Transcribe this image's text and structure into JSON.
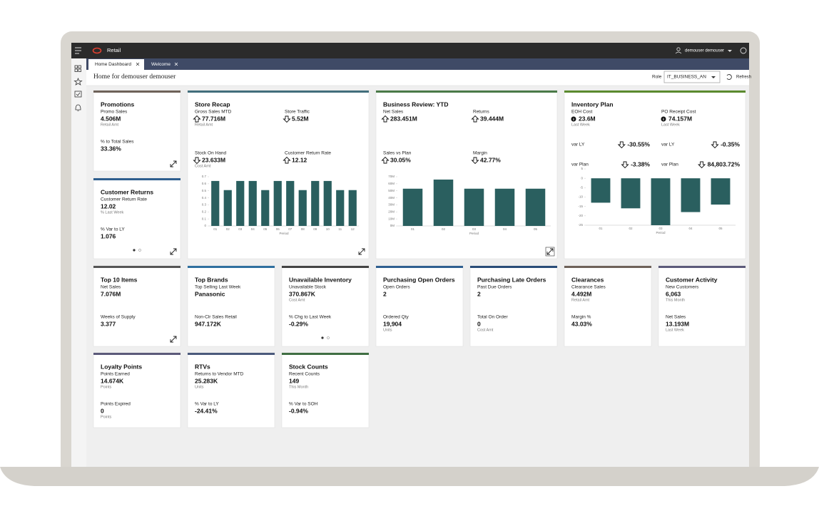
{
  "app": {
    "name": "Retail",
    "user": "demouser demouser",
    "tabs": [
      "Home Dashboard",
      "Welcome"
    ],
    "page_title": "Home for demouser demouser",
    "role_label": "Role",
    "role_value": "IT_BUSINESS_AN",
    "refresh": "Refresh"
  },
  "cards": [
    {
      "title": "Promotions",
      "accent": "#6e6259",
      "metrics": [
        {
          "label": "Promo Sales",
          "value": "4.506M",
          "sub": "Retail Amt"
        },
        {
          "label": "% to Total Sales",
          "value": "33.36%"
        }
      ]
    },
    {
      "title": "Customer Returns",
      "accent": "#2e5e8e",
      "metrics": [
        {
          "label": "Customer Return Rate",
          "value": "12.02",
          "sub": "% Last Week"
        },
        {
          "label": "% Var to LY",
          "value": "1.076"
        }
      ]
    },
    {
      "title": "Store Recap",
      "accent": "#426e7c",
      "metrics": [
        {
          "label": "Gross Sales MTD",
          "value": "77.716M",
          "sub": "Retail Amt",
          "trend": "up"
        },
        {
          "label": "Store Traffic",
          "value": "5.52M",
          "trend": "down"
        },
        {
          "label": "Stock On Hand",
          "value": "23.633M",
          "sub": "Cost Amt",
          "trend": "down"
        },
        {
          "label": "Customer Return Rate",
          "value": "12.12",
          "trend": "up"
        }
      ],
      "chart": {
        "type": "bar",
        "color": "#2a5f5f",
        "x_label": "Period",
        "categories": [
          "01",
          "02",
          "03",
          "04",
          "05",
          "06",
          "07",
          "08",
          "09",
          "10",
          "11",
          "12"
        ],
        "values": [
          0.64,
          0.51,
          0.64,
          0.64,
          0.51,
          0.64,
          0.64,
          0.51,
          0.64,
          0.64,
          0.51,
          0.51
        ],
        "ylim": [
          0,
          0.7
        ],
        "yticks": [
          0,
          0.1,
          0.2,
          0.3,
          0.4,
          0.5,
          0.6,
          0.7
        ]
      }
    },
    {
      "title": "Business Review: YTD",
      "accent": "#4a7a48",
      "metrics": [
        {
          "label": "Net Sales",
          "value": "283.451M",
          "trend": "up"
        },
        {
          "label": "Returns",
          "value": "39.444M",
          "trend": "up"
        },
        {
          "label": "Sales vs Plan",
          "value": "30.05%",
          "trend": "up"
        },
        {
          "label": "Margin",
          "value": "42.77%",
          "trend": "down"
        }
      ],
      "chart": {
        "type": "bar",
        "color": "#2a5f5f",
        "x_label": "Period",
        "categories": [
          "01",
          "02",
          "03",
          "04",
          "05"
        ],
        "values": [
          53,
          66,
          53,
          53,
          53
        ],
        "ylim": [
          0,
          70
        ],
        "yticks": [
          {
            "value": 0,
            "label": "0M"
          },
          {
            "value": 10,
            "label": "10M"
          },
          {
            "value": 20,
            "label": "20M"
          },
          {
            "value": 30,
            "label": "30M"
          },
          {
            "value": 40,
            "label": "40M"
          },
          {
            "value": 50,
            "label": "50M"
          },
          {
            "value": 60,
            "label": "60M"
          },
          {
            "value": 70,
            "label": "70M"
          }
        ]
      }
    },
    {
      "title": "Inventory Plan",
      "accent": "#5b8a2e",
      "metrics": [
        {
          "label": "EOH Cost",
          "value": "23.6M",
          "sub": "Last Week",
          "trend": "info"
        },
        {
          "label": "PO Receipt Cost",
          "value": "74.157M",
          "sub": "Last Week",
          "trend": "info"
        },
        {
          "label": "var LY",
          "value": "-30.55%",
          "trend": "down"
        },
        {
          "label": "var LY",
          "value": "-0.35%",
          "trend": "down"
        },
        {
          "label": "var Plan",
          "value": "-3.38%",
          "trend": "down"
        },
        {
          "label": "var Plan",
          "value": "84,803.72%",
          "trend": "down"
        }
      ],
      "chart": {
        "type": "bar",
        "color": "#2a5f5f",
        "x_label": "Period",
        "categories": [
          "01",
          "02",
          "03",
          "04",
          "05"
        ],
        "values": [
          -13,
          -16,
          -25,
          -18,
          -14
        ],
        "ylim": [
          -25,
          5
        ],
        "yticks": [
          -25,
          -20,
          -15,
          -10,
          -5,
          0,
          5
        ]
      }
    },
    {
      "title": "Top 10 Items",
      "accent": "#555555",
      "metrics": [
        {
          "label": "Net Sales",
          "value": "7.076M"
        },
        {
          "label": "Weeks of Supply",
          "value": "3.377"
        }
      ]
    },
    {
      "title": "Top Brands",
      "accent": "#2f6f9f",
      "metrics": [
        {
          "label": "Top Selling Last Week",
          "value": "Panasonic"
        },
        {
          "label": "Non-Clr Sales Retail",
          "value": "947.172K"
        }
      ]
    },
    {
      "title": "Unavailable Inventory",
      "accent": "#444444",
      "metrics": [
        {
          "label": "Unavailable Stock",
          "value": "370.867K",
          "sub": "Cost Amt"
        },
        {
          "label": "% Chg to Last Week",
          "value": "-0.29%"
        }
      ]
    },
    {
      "title": "Purchasing Open Orders",
      "accent": "#2f5f90",
      "metrics": [
        {
          "label": "Open Orders",
          "value": "2"
        },
        {
          "label": "Ordered Qty",
          "value": "19,904",
          "sub": "Units"
        }
      ]
    },
    {
      "title": "Purchasing Late Orders",
      "accent": "#2a4c78",
      "metrics": [
        {
          "label": "Past Due Orders",
          "value": "2"
        },
        {
          "label": "Total On Order",
          "value": "0",
          "sub": "Cost Amt"
        }
      ]
    },
    {
      "title": "Clearances",
      "accent": "#6e6259",
      "metrics": [
        {
          "label": "Clearance Sales",
          "value": "4.492M",
          "sub": "Retail Amt"
        },
        {
          "label": "Margin %",
          "value": "43.03%"
        }
      ]
    },
    {
      "title": "Customer Activity",
      "accent": "#5c5a7a",
      "metrics": [
        {
          "label": "New Customers",
          "value": "6,063",
          "sub": "This Month"
        },
        {
          "label": "Net Sales",
          "value": "13.193M",
          "sub": "Last Week"
        }
      ]
    },
    {
      "title": "Loyalty Points",
      "accent": "#5c5a7a",
      "metrics": [
        {
          "label": "Points Earned",
          "value": "14.674K",
          "sub": "Points"
        },
        {
          "label": "Points Expired",
          "value": "0",
          "sub": "Points"
        }
      ]
    },
    {
      "title": "RTVs",
      "accent": "#4b5a7c",
      "metrics": [
        {
          "label": "Returns to Vendor MTD",
          "value": "25.283K",
          "sub": "Units"
        },
        {
          "label": "% Var to LY",
          "value": "-24.41%"
        }
      ]
    },
    {
      "title": "Stock Counts",
      "accent": "#3f6e42",
      "metrics": [
        {
          "label": "Recent Counts",
          "value": "149",
          "sub": "This Month"
        },
        {
          "label": "% Var to SOH",
          "value": "-0.94%"
        }
      ]
    }
  ]
}
